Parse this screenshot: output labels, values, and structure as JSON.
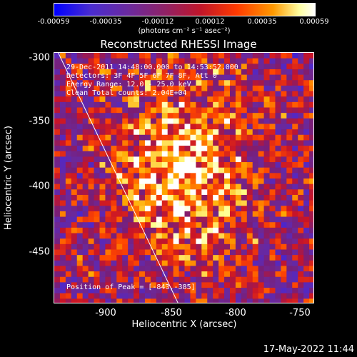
{
  "colorbar": {
    "ticks": [
      "-0.00059",
      "-0.00035",
      "-0.00012",
      "0.00012",
      "0.00035",
      "0.00059"
    ],
    "unit": "(photons cm⁻² s⁻¹ asec⁻²)"
  },
  "chart_data": {
    "type": "heatmap",
    "title": "Reconstructed RHESSI Image",
    "xlabel": "Heliocentric X (arcsec)",
    "ylabel": "Heliocentric Y (arcsec)",
    "xlim": [
      -940,
      -745
    ],
    "ylim": [
      -488,
      -296
    ],
    "xticks": [
      "-900",
      "-850",
      "-800",
      "-750"
    ],
    "yticks": [
      "-300",
      "-350",
      "-400",
      "-450"
    ],
    "colorscale_range": [
      -0.00059,
      0.00059
    ],
    "peak": {
      "x": -843,
      "y": -385
    },
    "limb_line": {
      "x": [
        -937,
        -847
      ],
      "y": [
        -296,
        -488
      ]
    },
    "info_lines": [
      "29-Dec-2011 14:48:00.000 to 14:53:52.000",
      "Detectors: 3F 4F 5F 6F 7F 8F, Att 0",
      "Energy Range: 12.0 - 25.0 keV",
      "Clean     Total counts: 2.04E+04"
    ],
    "peak_label": "Position of Peak = [-843,-385]"
  },
  "footer_date": "17-May-2022 11:44"
}
